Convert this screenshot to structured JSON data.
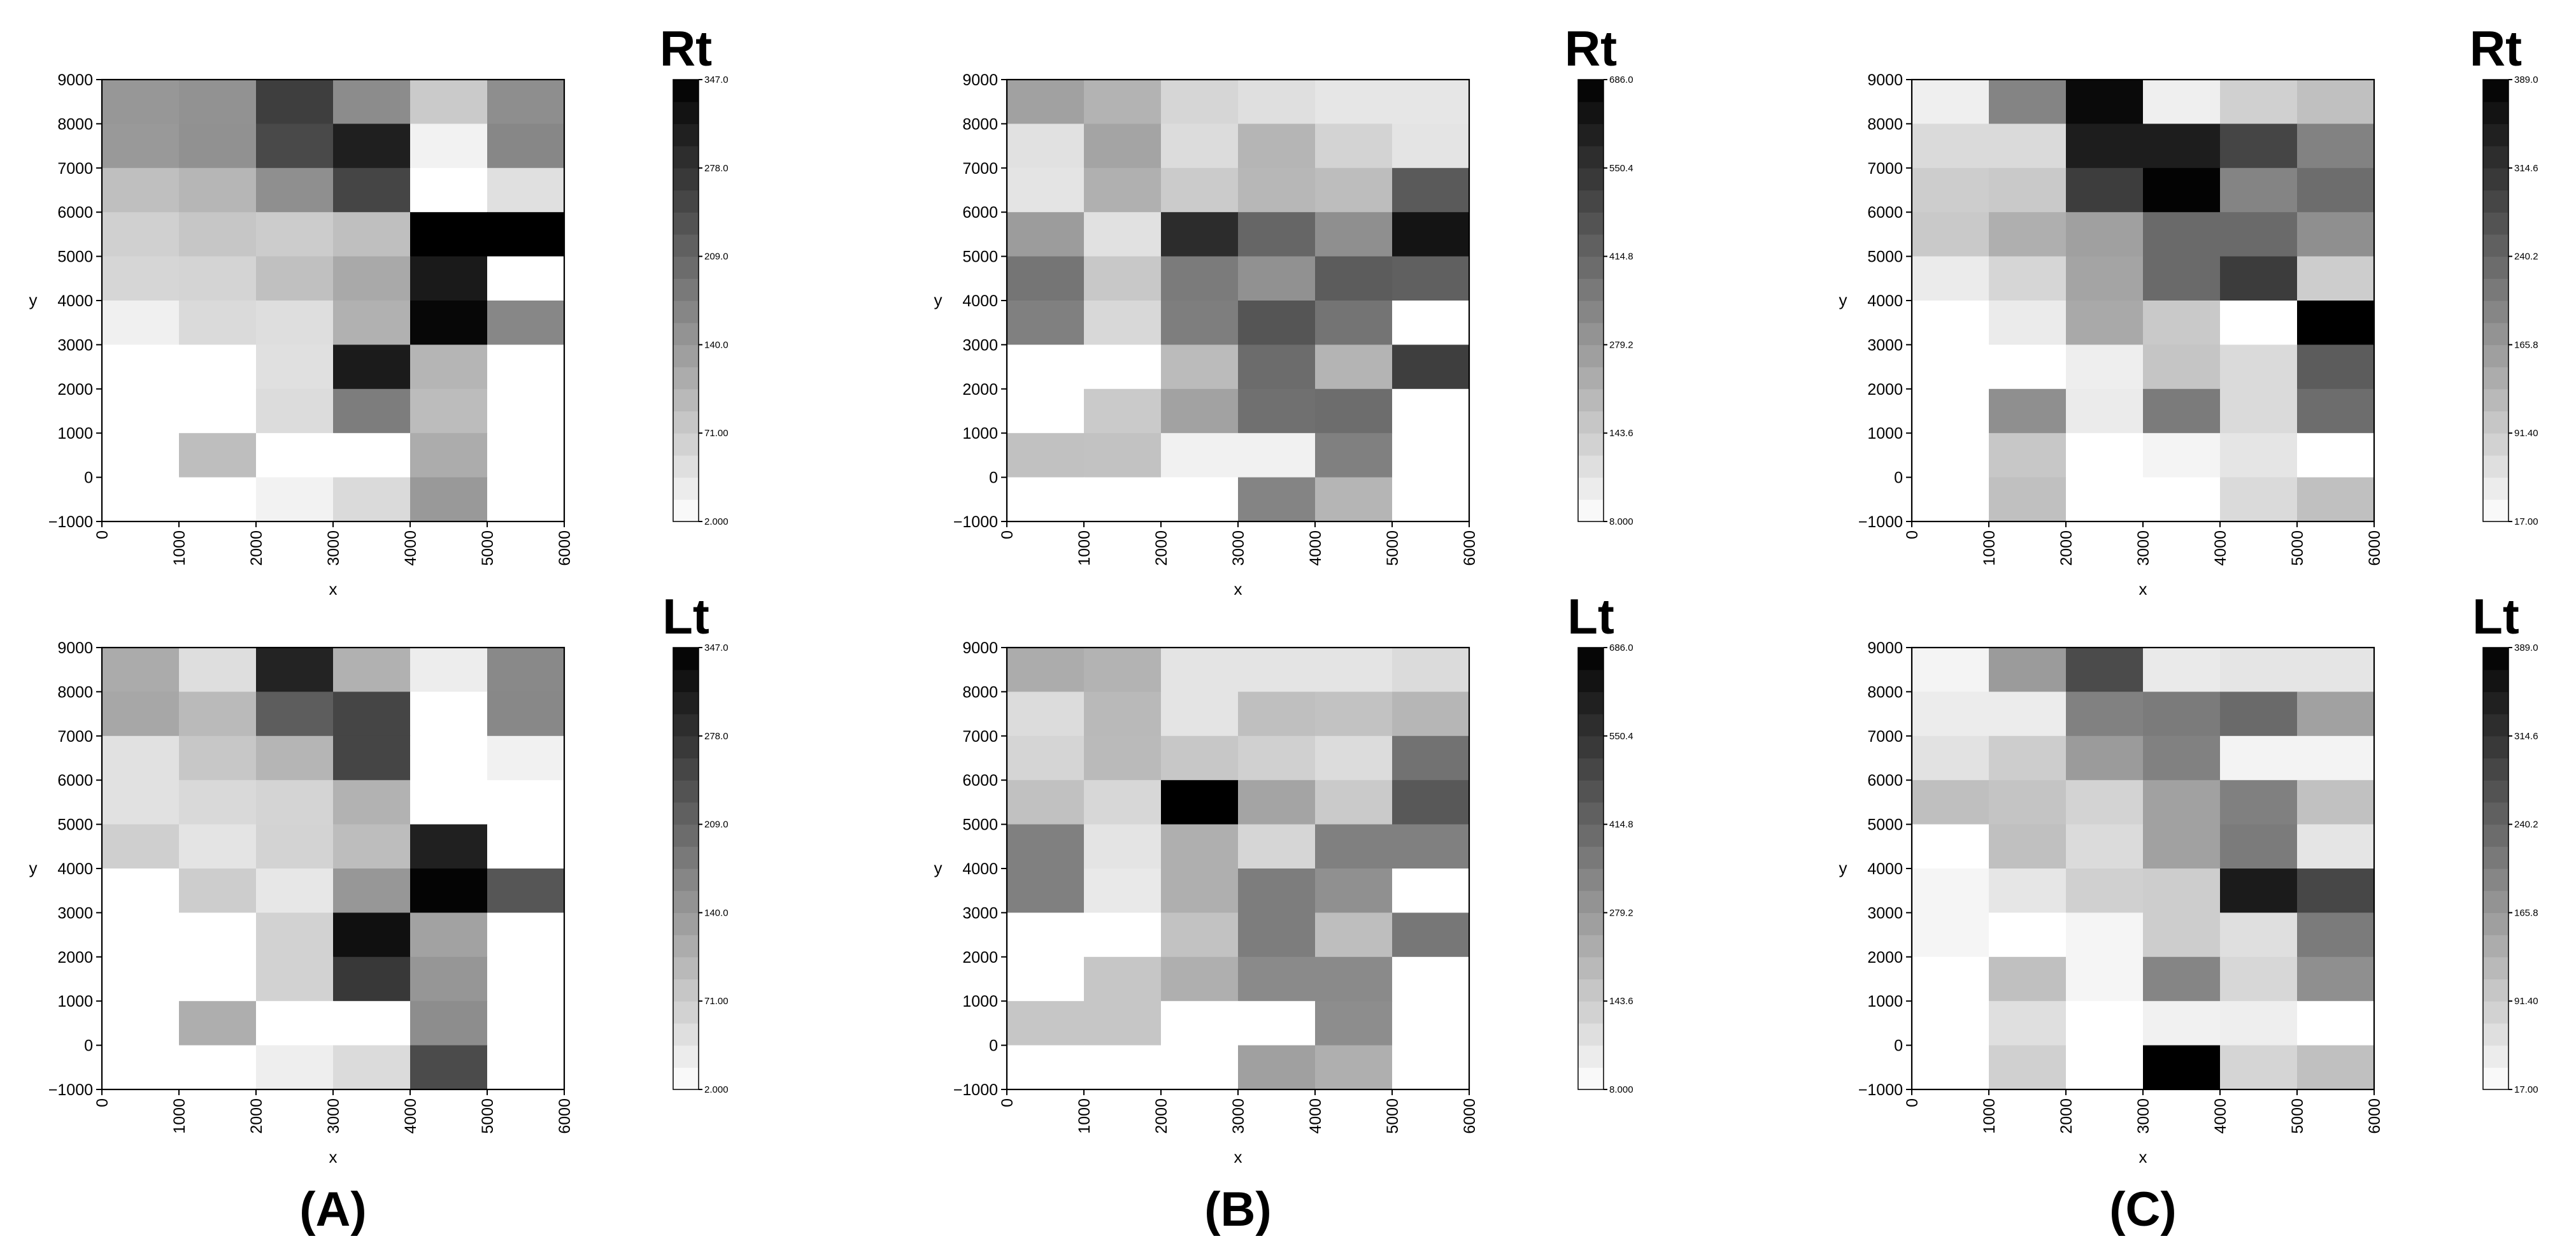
{
  "chart_data": [
    {
      "type": "heatmap",
      "panel": "A",
      "row": "Rt",
      "side_label": "Rt",
      "caption": "(A)",
      "xlabel": "x",
      "ylabel": "y",
      "x_ticks": [
        "0",
        "1000",
        "2000",
        "3000",
        "4000",
        "5000",
        "6000"
      ],
      "y_ticks": [
        "−1000",
        "0",
        "1000",
        "2000",
        "3000",
        "4000",
        "5000",
        "6000",
        "7000",
        "8000",
        "9000"
      ],
      "xlim": [
        0,
        6000
      ],
      "ylim": [
        -1000,
        9000
      ],
      "colorbar": {
        "min": 2.0,
        "max": 347.0,
        "ticks": [
          "347.0",
          "278.0",
          "209.0",
          "140.0",
          "71.00",
          "2.000"
        ]
      },
      "values": [
        [
          143,
          150,
          263,
          157,
          74,
          155
        ],
        [
          140,
          151,
          248,
          305,
          20,
          165
        ],
        [
          89,
          101,
          154,
          253,
          2,
          44
        ],
        [
          66,
          79,
          71,
          89,
          347,
          347
        ],
        [
          57,
          60,
          87,
          118,
          312,
          2
        ],
        [
          22,
          52,
          47,
          108,
          338,
          165
        ],
        [
          2,
          2,
          44,
          311,
          102,
          2
        ],
        [
          2,
          2,
          50,
          178,
          92,
          2
        ],
        [
          2,
          90,
          2,
          2,
          114,
          2
        ],
        [
          2,
          2,
          20,
          52,
          140,
          2
        ]
      ]
    },
    {
      "type": "heatmap",
      "panel": "A",
      "row": "Lt",
      "side_label": "Lt",
      "caption": "",
      "xlabel": "x",
      "ylabel": "y",
      "x_ticks": [
        "0",
        "1000",
        "2000",
        "3000",
        "4000",
        "5000",
        "6000"
      ],
      "y_ticks": [
        "−1000",
        "0",
        "1000",
        "2000",
        "3000",
        "4000",
        "5000",
        "6000",
        "7000",
        "8000",
        "9000"
      ],
      "xlim": [
        0,
        6000
      ],
      "ylim": [
        -1000,
        9000
      ],
      "colorbar": {
        "min": 2.0,
        "max": 347.0,
        "ticks": [
          "347.0",
          "278.0",
          "209.0",
          "140.0",
          "71.00",
          "2.000"
        ]
      },
      "values": [
        [
          115,
          47,
          300,
          108,
          27,
          161
        ],
        [
          121,
          96,
          221,
          253,
          2,
          163
        ],
        [
          43,
          78,
          102,
          253,
          2,
          21
        ],
        [
          43,
          54,
          60,
          106,
          2,
          2
        ],
        [
          67,
          38,
          61,
          91,
          304,
          2
        ],
        [
          2,
          69,
          34,
          143,
          342,
          230
        ],
        [
          2,
          2,
          63,
          326,
          128,
          2
        ],
        [
          2,
          2,
          63,
          271,
          144,
          2
        ],
        [
          2,
          111,
          2,
          2,
          156,
          2
        ],
        [
          2,
          2,
          25,
          51,
          245,
          2
        ]
      ]
    },
    {
      "type": "heatmap",
      "panel": "B",
      "row": "Rt",
      "side_label": "Rt",
      "caption": "(B)",
      "xlabel": "x",
      "ylabel": "y",
      "x_ticks": [
        "0",
        "1000",
        "2000",
        "3000",
        "4000",
        "5000",
        "6000"
      ],
      "y_ticks": [
        "−1000",
        "0",
        "1000",
        "2000",
        "3000",
        "4000",
        "5000",
        "6000",
        "7000",
        "8000",
        "9000"
      ],
      "xlim": [
        0,
        6000
      ],
      "ylim": [
        -1000,
        9000
      ],
      "colorbar": {
        "min": 8.0,
        "max": 686.0,
        "ticks": [
          "686.0",
          "550.4",
          "414.8",
          "279.2",
          "143.6",
          "8.000"
        ]
      },
      "values": [
        [
          258,
          209,
          118,
          94,
          74,
          74
        ],
        [
          87,
          250,
          102,
          206,
          126,
          80
        ],
        [
          80,
          218,
          146,
          200,
          183,
          447
        ],
        [
          272,
          87,
          570,
          414,
          305,
          632
        ],
        [
          374,
          155,
          359,
          301,
          442,
          431
        ],
        [
          347,
          112,
          350,
          459,
          378,
          8
        ],
        [
          8,
          8,
          188,
          399,
          207,
          520
        ],
        [
          8,
          150,
          254,
          387,
          396,
          8
        ],
        [
          173,
          170,
          44,
          44,
          345,
          8
        ],
        [
          8,
          8,
          8,
          334,
          206,
          8
        ]
      ]
    },
    {
      "type": "heatmap",
      "panel": "B",
      "row": "Lt",
      "side_label": "Lt",
      "caption": "",
      "xlabel": "x",
      "ylabel": "y",
      "x_ticks": [
        "0",
        "1000",
        "2000",
        "3000",
        "4000",
        "5000",
        "6000"
      ],
      "y_ticks": [
        "−1000",
        "0",
        "1000",
        "2000",
        "3000",
        "4000",
        "5000",
        "6000",
        "7000",
        "8000",
        "9000"
      ],
      "xlim": [
        0,
        6000
      ],
      "ylim": [
        -1000,
        9000
      ],
      "colorbar": {
        "min": 8.0,
        "max": 686.0,
        "ticks": [
          "686.0",
          "550.4",
          "414.8",
          "279.2",
          "143.6",
          "8.000"
        ]
      },
      "values": [
        [
          228,
          210,
          80,
          80,
          80,
          104
        ],
        [
          100,
          195,
          80,
          178,
          170,
          202
        ],
        [
          121,
          191,
          156,
          134,
          100,
          382
        ],
        [
          174,
          115,
          686,
          251,
          148,
          451
        ],
        [
          347,
          80,
          222,
          118,
          347,
          347
        ],
        [
          347,
          67,
          222,
          354,
          302,
          8
        ],
        [
          8,
          8,
          170,
          354,
          182,
          369
        ],
        [
          8,
          160,
          220,
          320,
          320,
          8
        ],
        [
          160,
          160,
          8,
          8,
          312,
          8
        ],
        [
          8,
          8,
          8,
          260,
          220,
          8
        ]
      ]
    },
    {
      "type": "heatmap",
      "panel": "C",
      "row": "Rt",
      "side_label": "Rt",
      "caption": "(C)",
      "xlabel": "x",
      "ylabel": "y",
      "x_ticks": [
        "0",
        "1000",
        "2000",
        "3000",
        "4000",
        "5000",
        "6000"
      ],
      "y_ticks": [
        "−1000",
        "0",
        "1000",
        "2000",
        "3000",
        "4000",
        "5000",
        "6000",
        "7000",
        "8000",
        "9000"
      ],
      "xlim": [
        0,
        6000
      ],
      "ylim": [
        -1000,
        9000
      ],
      "colorbar": {
        "min": 17.0,
        "max": 389.0,
        "ticks": [
          "389.0",
          "314.6",
          "240.2",
          "165.8",
          "91.40",
          "17.00"
        ]
      },
      "values": [
        [
          40,
          197,
          374,
          41,
          85,
          109
        ],
        [
          71,
          71,
          347,
          347,
          289,
          200
        ],
        [
          90,
          96,
          300,
          384,
          197,
          230
        ],
        [
          96,
          133,
          155,
          235,
          235,
          181
        ],
        [
          46,
          77,
          150,
          235,
          301,
          90
        ],
        [
          17,
          46,
          143,
          96,
          17,
          389
        ],
        [
          17,
          17,
          42,
          101,
          71,
          255
        ],
        [
          17,
          181,
          46,
          209,
          71,
          230
        ],
        [
          17,
          98,
          17,
          33,
          55,
          17
        ],
        [
          17,
          109,
          17,
          17,
          71,
          109
        ]
      ]
    },
    {
      "type": "heatmap",
      "panel": "C",
      "row": "Lt",
      "side_label": "Lt",
      "caption": "",
      "xlabel": "x",
      "ylabel": "y",
      "x_ticks": [
        "0",
        "1000",
        "2000",
        "3000",
        "4000",
        "5000",
        "6000"
      ],
      "y_ticks": [
        "−1000",
        "0",
        "1000",
        "2000",
        "3000",
        "4000",
        "5000",
        "6000",
        "7000",
        "8000",
        "9000"
      ],
      "xlim": [
        0,
        6000
      ],
      "ylim": [
        -1000,
        9000
      ],
      "colorbar": {
        "min": 17.0,
        "max": 389.0,
        "ticks": [
          "389.0",
          "314.6",
          "240.2",
          "165.8",
          "91.40",
          "17.00"
        ]
      },
      "values": [
        [
          33,
          163,
          280,
          47,
          55,
          55
        ],
        [
          45,
          45,
          201,
          210,
          235,
          154
        ],
        [
          59,
          90,
          163,
          201,
          35,
          35
        ],
        [
          111,
          103,
          81,
          154,
          202,
          107
        ],
        [
          17,
          109,
          69,
          154,
          209,
          55
        ],
        [
          31,
          54,
          86,
          90,
          350,
          285
        ],
        [
          31,
          17,
          31,
          90,
          63,
          210
        ],
        [
          17,
          109,
          32,
          195,
          75,
          181
        ],
        [
          17,
          63,
          17,
          37,
          42,
          17
        ],
        [
          17,
          86,
          17,
          389,
          78,
          109
        ]
      ]
    }
  ]
}
